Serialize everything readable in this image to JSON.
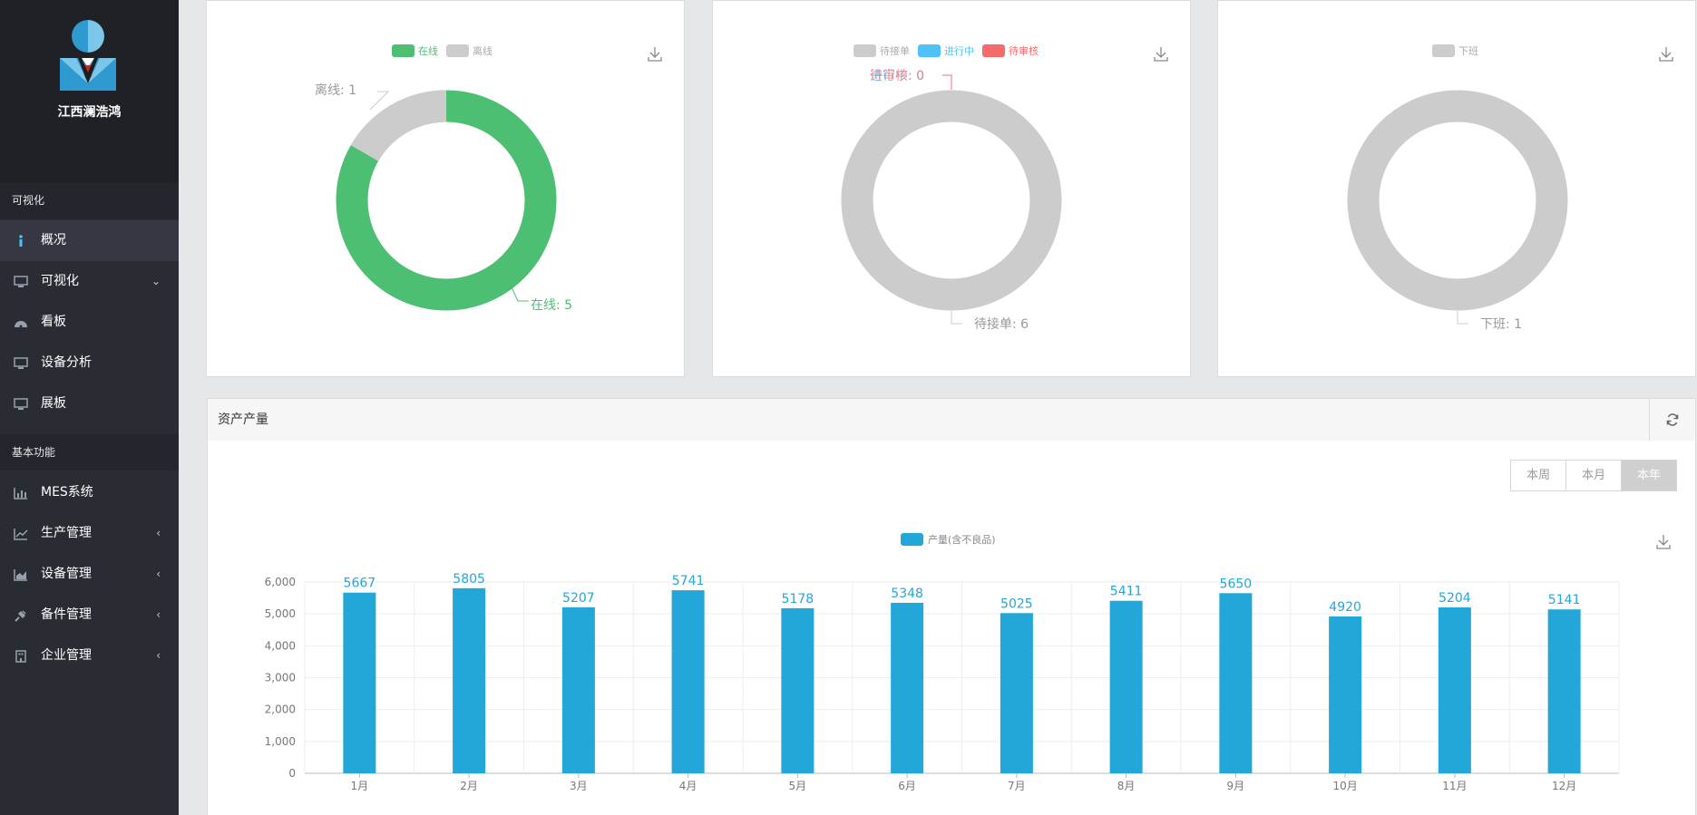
{
  "brand": {
    "name": "江西澜浩鸿"
  },
  "sidebar": {
    "section1": "可视化",
    "items1": [
      {
        "label": "概况",
        "icon": "info-icon"
      },
      {
        "label": "可视化",
        "icon": "monitor-icon",
        "caret": "⌄"
      },
      {
        "label": "看板",
        "icon": "dashboard-icon"
      },
      {
        "label": "设备分析",
        "icon": "monitor-icon"
      },
      {
        "label": "展板",
        "icon": "monitor-icon"
      }
    ],
    "section2": "基本功能",
    "items2": [
      {
        "label": "MES系统",
        "icon": "bar-chart-icon"
      },
      {
        "label": "生产管理",
        "icon": "line-chart-icon",
        "caret": "‹"
      },
      {
        "label": "设备管理",
        "icon": "area-chart-icon",
        "caret": "‹"
      },
      {
        "label": "备件管理",
        "icon": "plug-icon",
        "caret": "‹"
      },
      {
        "label": "企业管理",
        "icon": "building-icon",
        "caret": "‹"
      }
    ]
  },
  "donut1": {
    "legend": [
      {
        "label": "在线",
        "color": "#4dbf73"
      },
      {
        "label": "离线",
        "color": "#cccccc"
      }
    ],
    "labels": {
      "offline": "离线: 1",
      "online": "在线: 5"
    },
    "values": {
      "online": 5,
      "offline": 1
    }
  },
  "donut2": {
    "legend": [
      {
        "label": "待接单",
        "color": "#cccccc"
      },
      {
        "label": "进行中",
        "color": "#4fc3f7"
      },
      {
        "label": "待审核",
        "color": "#f56c6c"
      }
    ],
    "labels": {
      "top_a": "进行中: 0",
      "top_b": "待审核: 0",
      "bottom": "待接单: 6"
    },
    "values": {
      "pending": 6,
      "in_progress": 0,
      "review": 0
    }
  },
  "donut3": {
    "legend": [
      {
        "label": "下班",
        "color": "#cccccc"
      }
    ],
    "labels": {
      "bottom": "下班: 1"
    },
    "values": {
      "off": 1
    }
  },
  "asset": {
    "title": "资产产量",
    "tabs": [
      "本周",
      "本月",
      "本年"
    ],
    "active_tab": "本年"
  },
  "chart_data": {
    "type": "bar",
    "categories": [
      "1月",
      "2月",
      "3月",
      "4月",
      "5月",
      "6月",
      "7月",
      "8月",
      "9月",
      "10月",
      "11月",
      "12月"
    ],
    "series": [
      {
        "name": "产量(含不良品)",
        "color": "#22a7d8",
        "values": [
          5667,
          5805,
          5207,
          5741,
          5178,
          5348,
          5025,
          5411,
          5650,
          4920,
          5204,
          5141
        ]
      }
    ],
    "yticks": [
      "0",
      "1,000",
      "2,000",
      "3,000",
      "4,000",
      "5,000",
      "6,000"
    ],
    "ylim": [
      0,
      6000
    ],
    "grid": true,
    "legend": "top-center"
  }
}
